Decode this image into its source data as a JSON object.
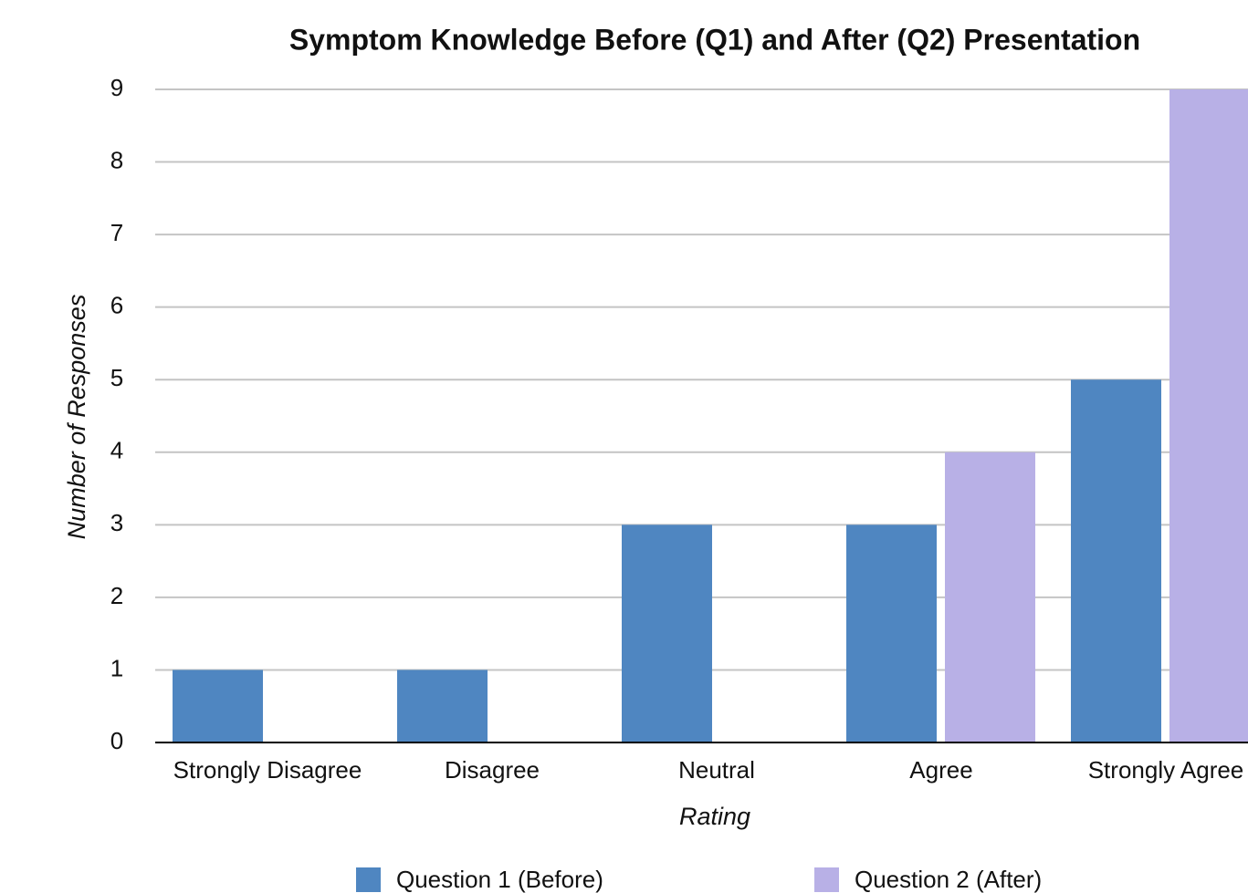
{
  "chart_data": {
    "type": "bar",
    "title": "Symptom Knowledge Before (Q1) and After (Q2) Presentation",
    "x_label": "Rating",
    "y_label": "Number of Responses",
    "categories": [
      "Strongly Disagree",
      "Disagree",
      "Neutral",
      "Agree",
      "Strongly Agree"
    ],
    "series": [
      {
        "name": "Question 1 (Before)",
        "color": "#4f86c1",
        "values": [
          1,
          1,
          3,
          3,
          5
        ]
      },
      {
        "name": "Question 2 (After)",
        "color": "#b8b0e6",
        "values": [
          0,
          0,
          0,
          4,
          9
        ]
      }
    ],
    "ylim": [
      0,
      9
    ],
    "yticks": [
      0,
      1,
      2,
      3,
      4,
      5,
      6,
      7,
      8,
      9
    ],
    "grid": true,
    "legend": "bottom"
  }
}
